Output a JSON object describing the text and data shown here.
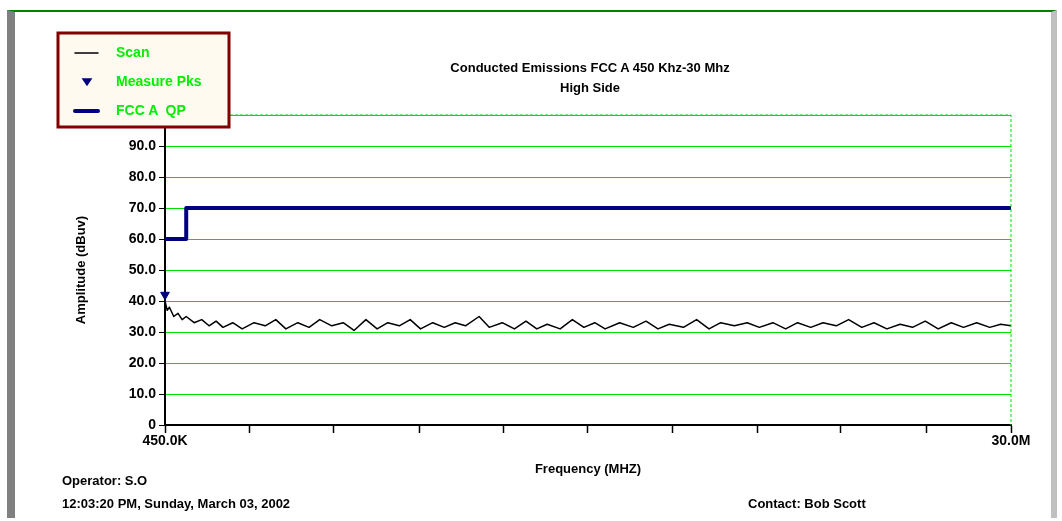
{
  "chart_data": {
    "type": "line",
    "title": "Conducted Emissions FCC A 450 Khz-30 Mhz",
    "subtitle": "High Side",
    "xlabel": "Frequency (MHZ)",
    "ylabel": "Amplitude (dBuv)",
    "annotations": [
      "Operator: S.O",
      "12:03:20 PM, Sunday, March 03, 2002",
      "Contact: Bob Scott"
    ],
    "log": "x",
    "grid": "y",
    "legend": "top left",
    "xlim": [
      450000,
      30000000
    ],
    "xticks": [
      {
        "value": 450000,
        "label": "450.0K"
      },
      {
        "value": 685000,
        "label": null
      },
      {
        "value": 1040000,
        "label": null
      },
      {
        "value": 1590000,
        "label": null
      },
      {
        "value": 2410000,
        "label": null
      },
      {
        "value": 3670000,
        "label": null
      },
      {
        "value": 5590000,
        "label": null
      },
      {
        "value": 8510000,
        "label": null
      },
      {
        "value": 12900000,
        "label": null
      },
      {
        "value": 19700000,
        "label": null
      },
      {
        "value": 30000000,
        "label": "30.0M"
      }
    ],
    "ylim": [
      0,
      100
    ],
    "yticks": [
      0,
      {
        "value": 10,
        "label": "10.0"
      },
      {
        "value": 20,
        "label": "20.0"
      },
      {
        "value": 30,
        "label": "30.0"
      },
      {
        "value": 40,
        "label": "40.0"
      },
      {
        "value": 50,
        "label": "50.0"
      },
      {
        "value": 60,
        "label": "60.0"
      },
      {
        "value": 70,
        "label": "70.0"
      },
      {
        "value": 80,
        "label": "80.0"
      },
      {
        "value": 90,
        "label": "90.0"
      },
      {
        "value": 100,
        "label": null
      }
    ],
    "series": [
      {
        "name": "Scan",
        "color": "#000000",
        "marker": "none",
        "x": [
          450000,
          455000,
          460000,
          470000,
          480000,
          490000,
          500000,
          520000,
          540000,
          560000,
          580000,
          600000,
          630000,
          660000,
          700000,
          740000,
          780000,
          820000,
          870000,
          920000,
          970000,
          1030000,
          1090000,
          1150000,
          1220000,
          1290000,
          1360000,
          1440000,
          1520000,
          1600000,
          1700000,
          1800000,
          1900000,
          2000000,
          2140000,
          2250000,
          2400000,
          2550000,
          2700000,
          2850000,
          3000000,
          3200000,
          3400000,
          3600000,
          3800000,
          4000000,
          4300000,
          4600000,
          4900000,
          5200000,
          5500000,
          5900000,
          6300000,
          6700000,
          7100000,
          7600000,
          8100000,
          8600000,
          9200000,
          9800000,
          10400000,
          11100000,
          11800000,
          12600000,
          13400000,
          14300000,
          15200000,
          16200000,
          17300000,
          18400000,
          19600000,
          20900000,
          22300000,
          23700000,
          25300000,
          27000000,
          28500000,
          30000000
        ],
        "values": [
          40,
          37,
          38,
          35,
          36,
          34,
          35,
          33,
          34,
          32,
          33.5,
          31.5,
          33,
          31,
          33,
          32,
          34,
          31,
          33,
          31.5,
          34,
          32,
          33,
          30.5,
          34,
          31,
          33,
          32,
          34,
          31,
          33,
          31.5,
          33,
          32,
          35,
          31.5,
          33,
          31,
          33.5,
          31,
          32.5,
          31,
          34,
          31.5,
          33,
          31,
          33,
          31.5,
          33.5,
          31,
          32.5,
          31.5,
          34,
          31,
          33,
          32,
          33,
          31.5,
          33,
          31,
          33,
          31.5,
          33,
          32,
          34,
          31.5,
          33,
          31,
          32.5,
          31.5,
          33.5,
          31,
          33,
          31.5,
          33,
          31.5,
          32.5,
          32
        ]
      },
      {
        "name": "Measure Pks",
        "type": "scatter",
        "color": "#000080",
        "marker": "triangle",
        "x": [
          450000
        ],
        "values": [
          42
        ]
      },
      {
        "name": "FCC A  QP",
        "color": "#000080",
        "marker": "none",
        "x": [
          450000,
          500000,
          500000,
          30000000
        ],
        "values": [
          60,
          60,
          70,
          70
        ]
      }
    ]
  }
}
